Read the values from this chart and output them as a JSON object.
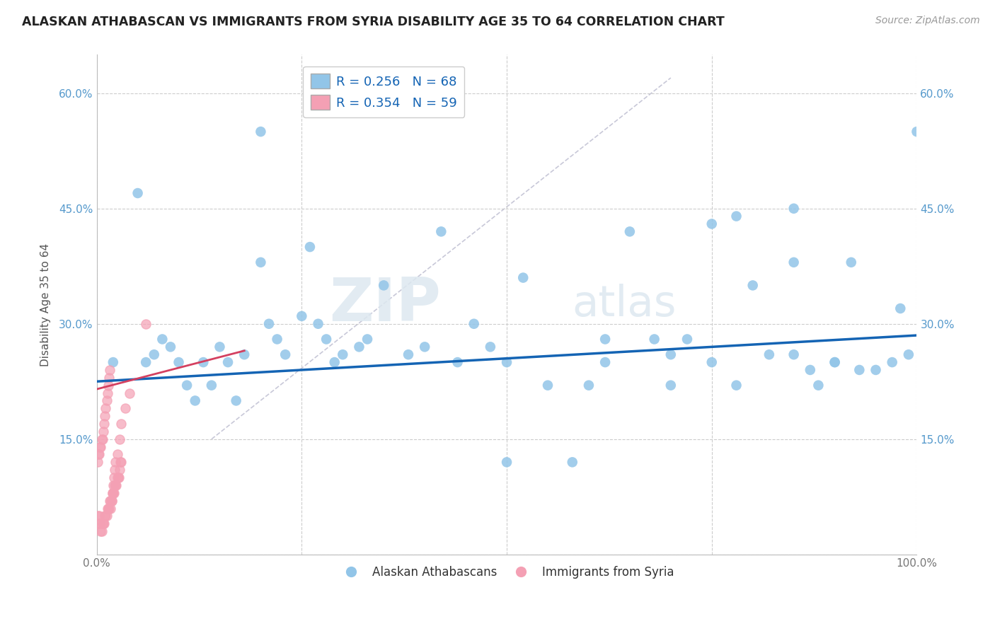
{
  "title": "ALASKAN ATHABASCAN VS IMMIGRANTS FROM SYRIA DISABILITY AGE 35 TO 64 CORRELATION CHART",
  "source": "Source: ZipAtlas.com",
  "ylabel": "Disability Age 35 to 64",
  "xlim": [
    0.0,
    1.0
  ],
  "ylim": [
    0.0,
    0.65
  ],
  "xticks": [
    0.0,
    0.25,
    0.5,
    0.75,
    1.0
  ],
  "xticklabels": [
    "0.0%",
    "",
    "",
    "",
    "100.0%"
  ],
  "yticks": [
    0.0,
    0.15,
    0.3,
    0.45,
    0.6
  ],
  "yticklabels": [
    "",
    "15.0%",
    "30.0%",
    "45.0%",
    "60.0%"
  ],
  "blue_R": 0.256,
  "blue_N": 68,
  "pink_R": 0.354,
  "pink_N": 59,
  "blue_color": "#92C5E8",
  "pink_color": "#F4A0B4",
  "blue_line_color": "#1464B4",
  "pink_line_color": "#D44060",
  "ref_line_color": "#C8C8D8",
  "watermark_zip": "ZIP",
  "watermark_atlas": "atlas",
  "legend_label_blue": "Alaskan Athabascans",
  "legend_label_pink": "Immigrants from Syria",
  "blue_scatter_x": [
    0.02,
    0.05,
    0.06,
    0.07,
    0.08,
    0.09,
    0.1,
    0.11,
    0.12,
    0.13,
    0.14,
    0.15,
    0.16,
    0.17,
    0.18,
    0.2,
    0.21,
    0.22,
    0.23,
    0.25,
    0.26,
    0.27,
    0.28,
    0.29,
    0.3,
    0.32,
    0.33,
    0.35,
    0.38,
    0.4,
    0.42,
    0.44,
    0.46,
    0.48,
    0.5,
    0.52,
    0.55,
    0.58,
    0.6,
    0.62,
    0.65,
    0.68,
    0.7,
    0.72,
    0.75,
    0.78,
    0.8,
    0.82,
    0.85,
    0.88,
    0.9,
    0.92,
    0.95,
    0.97,
    0.98,
    0.99,
    1.0,
    0.5,
    0.62,
    0.7,
    0.78,
    0.85,
    0.9,
    0.75,
    0.2,
    0.85,
    0.87,
    0.93
  ],
  "blue_scatter_y": [
    0.25,
    0.47,
    0.25,
    0.26,
    0.28,
    0.27,
    0.25,
    0.22,
    0.2,
    0.25,
    0.22,
    0.27,
    0.25,
    0.2,
    0.26,
    0.38,
    0.3,
    0.28,
    0.26,
    0.31,
    0.4,
    0.3,
    0.28,
    0.25,
    0.26,
    0.27,
    0.28,
    0.35,
    0.26,
    0.27,
    0.42,
    0.25,
    0.3,
    0.27,
    0.12,
    0.36,
    0.22,
    0.12,
    0.22,
    0.25,
    0.42,
    0.28,
    0.22,
    0.28,
    0.43,
    0.44,
    0.35,
    0.26,
    0.26,
    0.22,
    0.25,
    0.38,
    0.24,
    0.25,
    0.32,
    0.26,
    0.55,
    0.25,
    0.28,
    0.26,
    0.22,
    0.45,
    0.25,
    0.25,
    0.55,
    0.38,
    0.24,
    0.24
  ],
  "pink_scatter_x": [
    0.001,
    0.002,
    0.003,
    0.004,
    0.005,
    0.006,
    0.007,
    0.008,
    0.009,
    0.01,
    0.011,
    0.012,
    0.013,
    0.014,
    0.015,
    0.016,
    0.017,
    0.018,
    0.019,
    0.02,
    0.021,
    0.022,
    0.023,
    0.024,
    0.025,
    0.026,
    0.027,
    0.028,
    0.029,
    0.03,
    0.001,
    0.002,
    0.003,
    0.004,
    0.005,
    0.006,
    0.007,
    0.008,
    0.009,
    0.01,
    0.011,
    0.012,
    0.013,
    0.014,
    0.015,
    0.016,
    0.017,
    0.018,
    0.019,
    0.02,
    0.021,
    0.022,
    0.023,
    0.025,
    0.028,
    0.03,
    0.035,
    0.04,
    0.06
  ],
  "pink_scatter_y": [
    0.05,
    0.04,
    0.05,
    0.04,
    0.03,
    0.03,
    0.04,
    0.04,
    0.04,
    0.05,
    0.05,
    0.05,
    0.06,
    0.06,
    0.06,
    0.07,
    0.07,
    0.07,
    0.08,
    0.08,
    0.08,
    0.09,
    0.09,
    0.09,
    0.1,
    0.1,
    0.1,
    0.11,
    0.12,
    0.12,
    0.12,
    0.13,
    0.13,
    0.14,
    0.14,
    0.15,
    0.15,
    0.16,
    0.17,
    0.18,
    0.19,
    0.2,
    0.21,
    0.22,
    0.23,
    0.24,
    0.06,
    0.07,
    0.08,
    0.09,
    0.1,
    0.11,
    0.12,
    0.13,
    0.15,
    0.17,
    0.19,
    0.21,
    0.3
  ],
  "pink_line_x0": 0.0,
  "pink_line_x1": 0.18,
  "pink_line_y0": 0.215,
  "pink_line_y1": 0.265,
  "blue_line_x0": 0.0,
  "blue_line_x1": 1.0,
  "blue_line_y0": 0.225,
  "blue_line_y1": 0.285,
  "ref_line_x0": 0.14,
  "ref_line_x1": 0.7,
  "ref_line_y0": 0.15,
  "ref_line_y1": 0.62
}
